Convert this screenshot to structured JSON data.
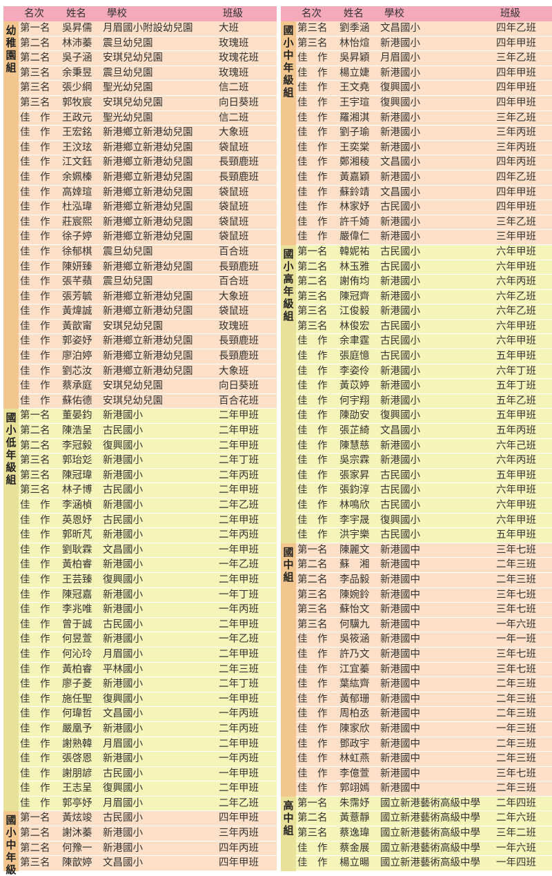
{
  "header": {
    "rank": "名次",
    "name": "姓名",
    "school": "學校",
    "class": "班級"
  },
  "columns": [
    {
      "groups": [
        {
          "label": "幼稚園組",
          "color": "peach",
          "rows": [
            [
              "第一名",
              "吳昇儒",
              "月眉國小附設幼兒園",
              "大班"
            ],
            [
              "第二名",
              "林沛蓁",
              "震旦幼兒園",
              "玫瑰班"
            ],
            [
              "第二名",
              "吳子涵",
              "安琪兒幼兒園",
              "玫瑰花班"
            ],
            [
              "第三名",
              "余秉昱",
              "震旦幼兒園",
              "玫瑰班"
            ],
            [
              "第三名",
              "張少綱",
              "聖光幼兒園",
              "信二班"
            ],
            [
              "第三名",
              "郭牧宸",
              "安琪兒幼兒園",
              "向日葵班"
            ],
            [
              "佳　作",
              "王政元",
              "聖光幼兒園",
              "信二班"
            ],
            [
              "佳　作",
              "王宏銘",
              "新港鄉立新港幼兒園",
              "大象班"
            ],
            [
              "佳　作",
              "王汶玹",
              "新港鄉立新港幼兒園",
              "袋鼠班"
            ],
            [
              "佳　作",
              "江文鈺",
              "新港鄉立新港幼兒園",
              "長頸鹿班"
            ],
            [
              "佳　作",
              "余姵榛",
              "新港鄉立新港幼兒園",
              "長頸鹿班"
            ],
            [
              "佳　作",
              "高婞瑄",
              "新港鄉立新港幼兒園",
              "袋鼠班"
            ],
            [
              "佳　作",
              "杜泓瑋",
              "新港鄉立新港幼兒園",
              "袋鼠班"
            ],
            [
              "佳　作",
              "莊宸熙",
              "新港鄉立新港幼兒園",
              "袋鼠班"
            ],
            [
              "佳　作",
              "徐子婷",
              "新港鄉立新港幼兒園",
              "袋鼠班"
            ],
            [
              "佳　作",
              "徐郁棋",
              "震旦幼兒園",
              "百合班"
            ],
            [
              "佳　作",
              "陳妍臻",
              "新港鄉立新港幼兒園",
              "長頸鹿班"
            ],
            [
              "佳　作",
              "張芊蘋",
              "震旦幼兒園",
              "百合班"
            ],
            [
              "佳　作",
              "張芳毓",
              "新港鄉立新港幼兒園",
              "大象班"
            ],
            [
              "佳　作",
              "黃煒誠",
              "新港鄉立新港幼兒園",
              "袋鼠班"
            ],
            [
              "佳　作",
              "黃歆甯",
              "安琪兒幼兒園",
              "玫瑰班"
            ],
            [
              "佳　作",
              "郭姿妤",
              "新港鄉立新港幼兒園",
              "長頸鹿班"
            ],
            [
              "佳　作",
              "廖泊婷",
              "新港鄉立新港幼兒園",
              "長頸鹿班"
            ],
            [
              "佳　作",
              "劉芯汝",
              "新港鄉立新港幼兒園",
              "大象班"
            ],
            [
              "佳　作",
              "蔡承庭",
              "安琪兒幼兒園",
              "向日葵班"
            ],
            [
              "佳　作",
              "蘇佑德",
              "安琪兒幼兒園",
              "百合花班"
            ]
          ]
        },
        {
          "label": "國小低年級組",
          "color": "lime",
          "rows": [
            [
              "第一名",
              "董晏鈞",
              "新港國小",
              "二年甲班"
            ],
            [
              "第二名",
              "陳浩呈",
              "古民國小",
              "二年甲班"
            ],
            [
              "第二名",
              "李冠毅",
              "復興國小",
              "二年甲班"
            ],
            [
              "第三名",
              "郭珆彣",
              "新港國小",
              "二年丁班"
            ],
            [
              "第三名",
              "陳冠瑋",
              "新港國小",
              "二年丙班"
            ],
            [
              "第三名",
              "林子博",
              "古民國小",
              "二年甲班"
            ],
            [
              "佳　作",
              "李涵楨",
              "新港國小",
              "二年乙班"
            ],
            [
              "佳　作",
              "英恩妤",
              "古民國小",
              "二年甲班"
            ],
            [
              "佳　作",
              "郭昕芃",
              "新港國小",
              "二年丙班"
            ],
            [
              "佳　作",
              "劉耿霖",
              "文昌國小",
              "一年甲班"
            ],
            [
              "佳　作",
              "黃柏睿",
              "新港國小",
              "一年乙班"
            ],
            [
              "佳　作",
              "王芸臻",
              "復興國小",
              "二年甲班"
            ],
            [
              "佳　作",
              "陳冠嘉",
              "新港國小",
              "一年丁班"
            ],
            [
              "佳　作",
              "李兆唯",
              "新港國小",
              "一年丙班"
            ],
            [
              "佳　作",
              "曾于誠",
              "古民國小",
              "二年甲班"
            ],
            [
              "佳　作",
              "何昱萱",
              "新港國小",
              "一年乙班"
            ],
            [
              "佳　作",
              "何沁玲",
              "月眉國小",
              "二年甲班"
            ],
            [
              "佳　作",
              "黃柏睿",
              "平林國小",
              "二年三班"
            ],
            [
              "佳　作",
              "廖子菱",
              "新港國小",
              "二年丁班"
            ],
            [
              "佳　作",
              "施任聖",
              "復興國小",
              "一年甲班"
            ],
            [
              "佳　作",
              "何瑋哲",
              "文昌國小",
              "一年丙班"
            ],
            [
              "佳　作",
              "嚴凰予",
              "新港國小",
              "二年丙班"
            ],
            [
              "佳　作",
              "謝熟韓",
              "月眉國小",
              "二年甲班"
            ],
            [
              "佳　作",
              "張啓恩",
              "新港國小",
              "一年丙班"
            ],
            [
              "佳　作",
              "謝朋諺",
              "古民國小",
              "一年甲班"
            ],
            [
              "佳　作",
              "王志呈",
              "復興國小",
              "二年甲班"
            ],
            [
              "佳　作",
              "郭亭妤",
              "月眉國小",
              "二年乙班"
            ]
          ]
        },
        {
          "label": "國小中年級",
          "color": "peach",
          "rows": [
            [
              "第一名",
              "黃炫竣",
              "古民國小",
              "四年甲班"
            ],
            [
              "第二名",
              "謝沐蓁",
              "新港國小",
              "三年丙班"
            ],
            [
              "第二名",
              "何豫一",
              "新港國小",
              "四年丙班"
            ],
            [
              "第三名",
              "陳歆婷",
              "文昌國小",
              "四年甲班"
            ]
          ]
        }
      ]
    },
    {
      "groups": [
        {
          "label": "國小中年級組",
          "color": "peach",
          "rows": [
            [
              "第三名",
              "劉季涵",
              "文昌國小",
              "四年乙班"
            ],
            [
              "第三名",
              "林怡煊",
              "新港國小",
              "四年甲班"
            ],
            [
              "佳　作",
              "吳昇穎",
              "月眉國小",
              "三年乙班"
            ],
            [
              "佳　作",
              "楊立婕",
              "新港國小",
              "四年甲班"
            ],
            [
              "佳　作",
              "王文堯",
              "復興國小",
              "四年甲班"
            ],
            [
              "佳　作",
              "王宇瑄",
              "復興國小",
              "四年甲班"
            ],
            [
              "佳　作",
              "羅湘淇",
              "新港國小",
              "三年乙班"
            ],
            [
              "佳　作",
              "劉子瑜",
              "新港國小",
              "三年丙班"
            ],
            [
              "佳　作",
              "王奕棠",
              "新港國小",
              "三年丙班"
            ],
            [
              "佳　作",
              "鄭湘稜",
              "文昌國小",
              "四年丙班"
            ],
            [
              "佳　作",
              "黃嘉穎",
              "新港國小",
              "四年乙班"
            ],
            [
              "佳　作",
              "蘇鈴靖",
              "文昌國小",
              "四年甲班"
            ],
            [
              "佳　作",
              "林家妤",
              "古民國小",
              "四年甲班"
            ],
            [
              "佳　作",
              "許千婍",
              "新港國小",
              "三年乙班"
            ],
            [
              "佳　作",
              "嚴偉仁",
              "新港國小",
              "三年甲班"
            ]
          ]
        },
        {
          "label": "國小高年級組",
          "color": "lime",
          "rows": [
            [
              "第一名",
              "韓妮祐",
              "古民國小",
              "六年甲班"
            ],
            [
              "第二名",
              "林玉雅",
              "古民國小",
              "六年甲班"
            ],
            [
              "第二名",
              "謝侑均",
              "新港國小",
              "六年丙班"
            ],
            [
              "第三名",
              "陳冠齊",
              "新港國小",
              "六年乙班"
            ],
            [
              "第三名",
              "江俊毅",
              "新港國小",
              "六年乙班"
            ],
            [
              "第三名",
              "林俊宏",
              "古民國小",
              "六年甲班"
            ],
            [
              "佳　作",
              "余聿霆",
              "古民國小",
              "六年甲班"
            ],
            [
              "佳　作",
              "張庭憶",
              "古民國小",
              "五年甲班"
            ],
            [
              "佳　作",
              "李姿伶",
              "新港國小",
              "六年丁班"
            ],
            [
              "佳　作",
              "黃苡婷",
              "新港國小",
              "五年丁班"
            ],
            [
              "佳　作",
              "何宇翔",
              "新港國小",
              "五年乙班"
            ],
            [
              "佳　作",
              "陳劭安",
              "復興國小",
              "五年甲班"
            ],
            [
              "佳　作",
              "張芷綺",
              "文昌國小",
              "五年丙班"
            ],
            [
              "佳　作",
              "陳慧慈",
              "新港國小",
              "六年己班"
            ],
            [
              "佳　作",
              "吳宗霖",
              "新港國小",
              "六年丙班"
            ],
            [
              "佳　作",
              "張家昇",
              "古民國小",
              "五年甲班"
            ],
            [
              "佳　作",
              "張鈞淳",
              "古民國小",
              "六年甲班"
            ],
            [
              "佳　作",
              "林鳴欣",
              "古民國小",
              "六年甲班"
            ],
            [
              "佳　作",
              "李宇晟",
              "復興國小",
              "六年甲班"
            ],
            [
              "佳　作",
              "洪宇樂",
              "古民國小",
              "五年甲班"
            ]
          ]
        },
        {
          "label": "國中組",
          "color": "peach",
          "rows": [
            [
              "第一名",
              "陳麗文",
              "新港國中",
              "三年七班"
            ],
            [
              "第二名",
              "蘇　湘",
              "新港國中",
              "二年三班"
            ],
            [
              "第二名",
              "李品毅",
              "新港國中",
              "二年三班"
            ],
            [
              "第三名",
              "陳婉鈴",
              "新港國中",
              "三年七班"
            ],
            [
              "第三名",
              "蘇怡文",
              "新港國中",
              "三年七班"
            ],
            [
              "第三名",
              "何驥九",
              "新港國中",
              "一年六班"
            ],
            [
              "佳　作",
              "吳筱涵",
              "新港國中",
              "一年一班"
            ],
            [
              "佳　作",
              "許乃文",
              "新港國中",
              "三年七班"
            ],
            [
              "佳　作",
              "江宜蓁",
              "新港國中",
              "三年七班"
            ],
            [
              "佳　作",
              "葉紘齊",
              "新港國中",
              "二年三班"
            ],
            [
              "佳　作",
              "黃郁珊",
              "新港國中",
              "二年三班"
            ],
            [
              "佳　作",
              "周柏丞",
              "新港國中",
              "二年三班"
            ],
            [
              "佳　作",
              "陳家欣",
              "新港國中",
              "一年三班"
            ],
            [
              "佳　作",
              "鄧政宇",
              "新港國中",
              "二年三班"
            ],
            [
              "佳　作",
              "林虹燕",
              "新港國中",
              "二年三班"
            ],
            [
              "佳　作",
              "李億萱",
              "新港國中",
              "三年七班"
            ],
            [
              "佳　作",
              "郭翊嫣",
              "新港國中",
              "二年三班"
            ]
          ]
        },
        {
          "label": "高中組",
          "color": "lime",
          "rows": [
            [
              "第一名",
              "朱霈妤",
              "國立新港藝術高級中學",
              "二年四班"
            ],
            [
              "第二名",
              "黃薏靜",
              "國立新港藝術高級中學",
              "二年六班"
            ],
            [
              "第三名",
              "蔡逸瑋",
              "國立新港藝術高級中學",
              "三年二班"
            ],
            [
              "佳　作",
              "蔡金展",
              "國立新港藝術高級中學",
              "一年六班"
            ],
            [
              "佳　作",
              "楊立暘",
              "國立新港藝術高級中學",
              "一年四班"
            ]
          ]
        }
      ]
    }
  ]
}
